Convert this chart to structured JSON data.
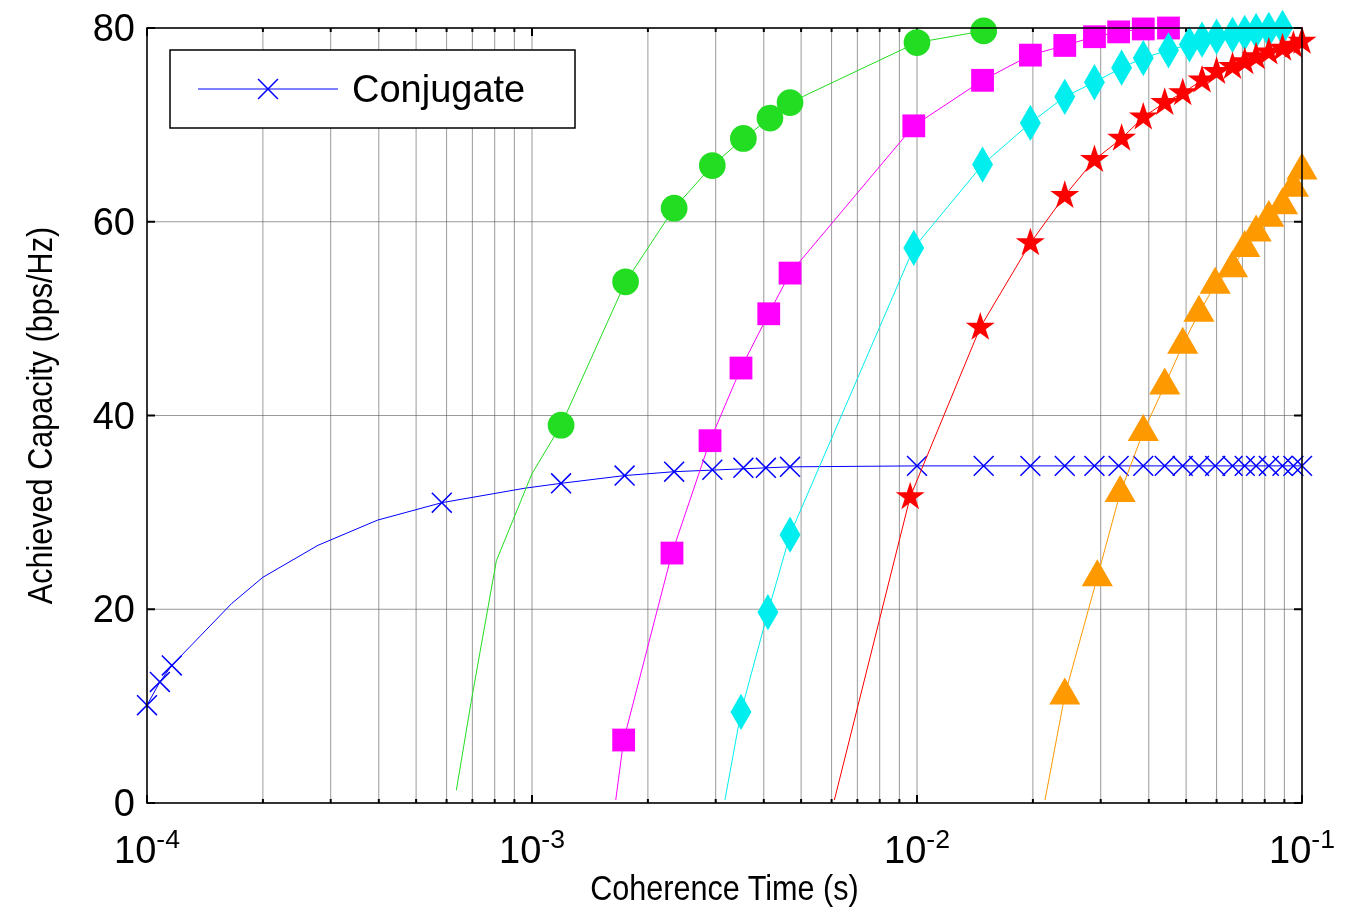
{
  "chart_data": {
    "type": "line",
    "xlabel": "Coherence Time (s)",
    "ylabel": "Achieved Capacity (bps/Hz)",
    "log": "x",
    "grid": true,
    "legend": "top left",
    "xlim": [
      0.0001,
      0.1
    ],
    "ylim": [
      0,
      80
    ],
    "xticks": [
      {
        "value": 0.0001,
        "label": "10$^{-4}$"
      },
      {
        "value": 0.0002,
        "label": null
      },
      {
        "value": 0.0003,
        "label": null
      },
      {
        "value": 0.0004,
        "label": null
      },
      {
        "value": 0.0005,
        "label": null
      },
      {
        "value": 0.0006,
        "label": null
      },
      {
        "value": 0.0007,
        "label": null
      },
      {
        "value": 0.0008,
        "label": null
      },
      {
        "value": 0.0009,
        "label": null
      },
      {
        "value": 0.001,
        "label": "10$^{-3}$"
      },
      {
        "value": 0.002,
        "label": null
      },
      {
        "value": 0.003,
        "label": null
      },
      {
        "value": 0.004,
        "label": null
      },
      {
        "value": 0.005,
        "label": null
      },
      {
        "value": 0.006,
        "label": null
      },
      {
        "value": 0.007,
        "label": null
      },
      {
        "value": 0.008,
        "label": null
      },
      {
        "value": 0.009,
        "label": null
      },
      {
        "value": 0.01,
        "label": "10$^{-2}$"
      },
      {
        "value": 0.02,
        "label": null
      },
      {
        "value": 0.03,
        "label": null
      },
      {
        "value": 0.04,
        "label": null
      },
      {
        "value": 0.05,
        "label": null
      },
      {
        "value": 0.06,
        "label": null
      },
      {
        "value": 0.07,
        "label": null
      },
      {
        "value": 0.08,
        "label": null
      },
      {
        "value": 0.09,
        "label": null
      },
      {
        "value": 0.1,
        "label": "10$^{-1}$"
      }
    ],
    "yticks": [
      0,
      20,
      40,
      60,
      80
    ],
    "series": [
      {
        "name": "Conjugate",
        "type": "line",
        "marker": "none",
        "color": "#0000ff",
        "x": [
          0.0001,
          0.000108,
          0.000116,
          0.000166,
          0.0002,
          0.000278,
          0.000397,
          0.000583,
          0.00096,
          0.00119,
          0.00174,
          0.00234,
          0.00468,
          0.01,
          0.1
        ],
        "values": [
          10.1,
          12.5,
          14.2,
          20.6,
          23.3,
          26.6,
          29.2,
          31,
          32.5,
          33,
          33.8,
          34.2,
          34.7,
          34.8,
          34.8
        ]
      },
      {
        "type": "scatter",
        "marker": "cross",
        "color": "#0000ff",
        "x": [
          0.0001,
          0.000108,
          0.000116,
          0.000583,
          0.00119,
          0.00174,
          0.00234,
          0.00294,
          0.00354,
          0.00405,
          0.00468,
          0.01,
          0.0149,
          0.0197,
          0.0242,
          0.0289,
          0.0334,
          0.0387,
          0.044,
          0.049,
          0.054,
          0.0595,
          0.066,
          0.071,
          0.076,
          0.082,
          0.089,
          0.095,
          0.1
        ],
        "values": [
          10.1,
          12.5,
          14.2,
          31,
          33,
          33.8,
          34.2,
          34.4,
          34.6,
          34.6,
          34.7,
          34.8,
          34.8,
          34.8,
          34.8,
          34.8,
          34.8,
          34.8,
          34.8,
          34.8,
          34.8,
          34.8,
          34.8,
          34.8,
          34.8,
          34.8,
          34.8,
          34.8,
          34.8
        ]
      },
      {
        "type": "line",
        "marker": "none",
        "color": "#22dd22",
        "x": [
          0.000636,
          0.000696,
          0.000808,
          0.001,
          0.00119,
          0.00175,
          0.00234,
          0.00294,
          0.00354,
          0.00415,
          0.00468,
          0.01,
          0.0149
        ],
        "values": [
          1.3,
          10.6,
          25,
          34,
          39,
          53.8,
          61.4,
          65.8,
          68.6,
          70.7,
          72.3,
          78.5,
          79.7
        ]
      },
      {
        "type": "scatter",
        "marker": "circle",
        "color": "#22dd22",
        "x": [
          0.00119,
          0.00175,
          0.00234,
          0.00294,
          0.00354,
          0.00415,
          0.00468,
          0.01,
          0.0149
        ],
        "values": [
          39,
          53.8,
          61.4,
          65.8,
          68.6,
          70.7,
          72.3,
          78.5,
          79.7
        ]
      },
      {
        "type": "line",
        "marker": "none",
        "color": "#ff00ff",
        "x": [
          0.00165,
          0.00173,
          0.00231,
          0.0029,
          0.00349,
          0.00412,
          0.00468,
          0.00981,
          0.0148,
          0.0197,
          0.0242,
          0.0289,
          0.0334,
          0.0387,
          0.045
        ],
        "values": [
          0.3,
          6.5,
          25.8,
          37.4,
          44.9,
          50.5,
          54.7,
          69.9,
          74.6,
          77.2,
          78.2,
          79.1,
          79.6,
          79.9,
          80
        ]
      },
      {
        "type": "scatter",
        "marker": "square",
        "color": "#ff00ff",
        "x": [
          0.00173,
          0.00231,
          0.0029,
          0.00349,
          0.00412,
          0.00468,
          0.00981,
          0.0148,
          0.0197,
          0.0242,
          0.0289,
          0.0334,
          0.0387,
          0.045
        ],
        "values": [
          6.5,
          25.8,
          37.4,
          44.9,
          50.5,
          54.7,
          69.9,
          74.6,
          77.2,
          78.2,
          79.1,
          79.6,
          79.9,
          80
        ]
      },
      {
        "type": "line",
        "marker": "none",
        "color": "#00eeee",
        "x": [
          0.00317,
          0.00349,
          0.0041,
          0.00468,
          0.00981,
          0.0148,
          0.0197,
          0.0242,
          0.0289,
          0.034,
          0.0387,
          0.045,
          0.051,
          0.055,
          0.06,
          0.066,
          0.071,
          0.076,
          0.082,
          0.089
        ],
        "values": [
          0.3,
          9.4,
          19.7,
          27.7,
          57.3,
          65.9,
          70.2,
          72.9,
          74.4,
          75.9,
          76.9,
          77.7,
          78.3,
          78.8,
          79.1,
          79.3,
          79.5,
          79.7,
          79.8,
          80
        ]
      },
      {
        "type": "scatter",
        "marker": "diamond",
        "color": "#00eeee",
        "x": [
          0.00349,
          0.0041,
          0.00468,
          0.00981,
          0.0148,
          0.0197,
          0.0242,
          0.0289,
          0.034,
          0.0387,
          0.045,
          0.051,
          0.055,
          0.06,
          0.066,
          0.071,
          0.076,
          0.082,
          0.089
        ],
        "values": [
          9.4,
          19.7,
          27.7,
          57.3,
          65.9,
          70.2,
          72.9,
          74.4,
          75.9,
          76.9,
          77.7,
          78.3,
          78.8,
          79.1,
          79.3,
          79.5,
          79.7,
          79.8,
          80
        ]
      },
      {
        "type": "line",
        "marker": "none",
        "color": "#ff0000",
        "x": [
          0.0061,
          0.0096,
          0.0146,
          0.0197,
          0.0242,
          0.0289,
          0.034,
          0.0387,
          0.044,
          0.049,
          0.055,
          0.06,
          0.066,
          0.071,
          0.076,
          0.082,
          0.089,
          0.095,
          0.1
        ],
        "values": [
          0.3,
          31.6,
          49.1,
          57.8,
          62.7,
          66.4,
          68.6,
          70.8,
          72.3,
          73.3,
          74.6,
          75.5,
          76,
          76.5,
          77,
          77.5,
          77.9,
          78.2,
          78.6
        ]
      },
      {
        "type": "scatter",
        "marker": "star",
        "color": "#ff0000",
        "x": [
          0.0096,
          0.0146,
          0.0197,
          0.0242,
          0.0289,
          0.034,
          0.0387,
          0.044,
          0.049,
          0.055,
          0.06,
          0.066,
          0.071,
          0.076,
          0.082,
          0.089,
          0.095,
          0.1
        ],
        "values": [
          31.6,
          49.1,
          57.8,
          62.7,
          66.4,
          68.6,
          70.8,
          72.3,
          73.3,
          74.6,
          75.5,
          76,
          76.5,
          77,
          77.5,
          77.9,
          78.2,
          78.6
        ]
      },
      {
        "type": "line",
        "marker": "none",
        "color": "#ff9900",
        "x": [
          0.0215,
          0.0242,
          0.0294,
          0.0337,
          0.0387,
          0.044,
          0.049,
          0.054,
          0.0595,
          0.066,
          0.071,
          0.076,
          0.082,
          0.089,
          0.095,
          0.1
        ],
        "values": [
          0.3,
          11.1,
          23.3,
          32,
          38.3,
          43.1,
          47.3,
          50.6,
          53.5,
          55.2,
          57.3,
          58.9,
          60.4,
          61.7,
          63.5,
          65.3
        ]
      },
      {
        "type": "scatter",
        "marker": "triangle",
        "color": "#ff9900",
        "x": [
          0.0242,
          0.0294,
          0.0337,
          0.0387,
          0.044,
          0.049,
          0.054,
          0.0595,
          0.066,
          0.071,
          0.076,
          0.082,
          0.089,
          0.095,
          0.1
        ],
        "values": [
          11.1,
          23.3,
          32,
          38.3,
          43.1,
          47.3,
          50.6,
          53.5,
          55.2,
          57.3,
          58.9,
          60.4,
          61.7,
          63.5,
          65.3
        ]
      }
    ]
  }
}
